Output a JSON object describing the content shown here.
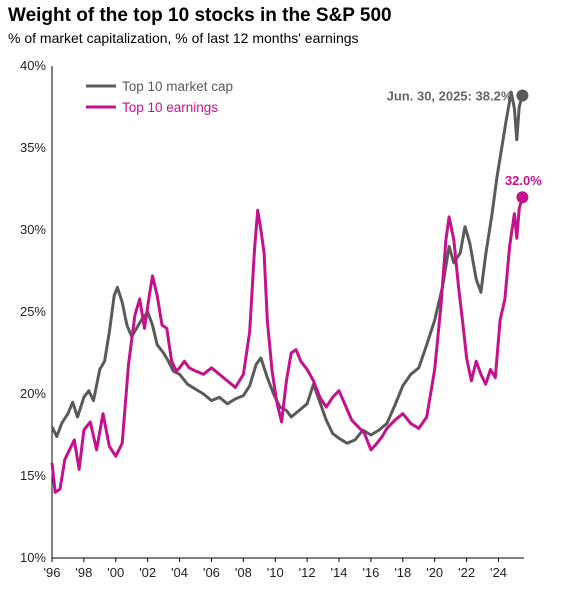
{
  "title": "Weight of the top 10 stocks in the S&P 500",
  "subtitle": "% of market capitalization, % of last 12 months' earnings",
  "colors": {
    "market_cap": "#5a5a5a",
    "earnings": "#c4128c"
  },
  "chart_data": {
    "type": "line",
    "title": "Weight of the top 10 stocks in the S&P 500",
    "subtitle": "% of market capitalization, % of last 12 months' earnings",
    "xlim": [
      1996,
      2025.6
    ],
    "ylim": [
      10,
      40
    ],
    "x_ticks": [
      1996,
      1998,
      2000,
      2002,
      2004,
      2006,
      2008,
      2010,
      2012,
      2014,
      2016,
      2018,
      2020,
      2022,
      2024
    ],
    "x_tick_labels": [
      "'96",
      "'98",
      "'00",
      "'02",
      "'04",
      "'06",
      "'08",
      "'10",
      "'12",
      "'14",
      "'16",
      "'18",
      "'20",
      "'22",
      "'24"
    ],
    "y_ticks": [
      10,
      15,
      20,
      25,
      30,
      35,
      40
    ],
    "y_tick_labels": [
      "10%",
      "15%",
      "20%",
      "25%",
      "30%",
      "35%",
      "40%"
    ],
    "grid": false,
    "legend": {
      "position": "top-left",
      "entries": [
        "Top 10 market cap",
        "Top 10 earnings"
      ]
    },
    "series": [
      {
        "name": "Top 10 market cap",
        "color": "#5a5a5a",
        "points": [
          [
            1996.0,
            18.0
          ],
          [
            1996.3,
            17.4
          ],
          [
            1996.6,
            18.2
          ],
          [
            1997.0,
            18.8
          ],
          [
            1997.3,
            19.5
          ],
          [
            1997.6,
            18.6
          ],
          [
            1998.0,
            19.8
          ],
          [
            1998.3,
            20.2
          ],
          [
            1998.6,
            19.6
          ],
          [
            1999.0,
            21.5
          ],
          [
            1999.3,
            22.0
          ],
          [
            1999.6,
            23.8
          ],
          [
            1999.9,
            26.0
          ],
          [
            2000.1,
            26.5
          ],
          [
            2000.4,
            25.6
          ],
          [
            2000.7,
            24.2
          ],
          [
            2001.0,
            23.5
          ],
          [
            2001.3,
            24.0
          ],
          [
            2001.6,
            24.5
          ],
          [
            2002.0,
            25.0
          ],
          [
            2002.3,
            24.2
          ],
          [
            2002.6,
            23.0
          ],
          [
            2003.0,
            22.5
          ],
          [
            2003.3,
            22.0
          ],
          [
            2003.6,
            21.4
          ],
          [
            2004.0,
            21.2
          ],
          [
            2004.5,
            20.6
          ],
          [
            2005.0,
            20.3
          ],
          [
            2005.5,
            20.0
          ],
          [
            2006.0,
            19.6
          ],
          [
            2006.5,
            19.8
          ],
          [
            2007.0,
            19.4
          ],
          [
            2007.5,
            19.7
          ],
          [
            2008.0,
            19.9
          ],
          [
            2008.4,
            20.5
          ],
          [
            2008.8,
            21.8
          ],
          [
            2009.1,
            22.2
          ],
          [
            2009.5,
            21.0
          ],
          [
            2009.9,
            20.0
          ],
          [
            2010.3,
            19.2
          ],
          [
            2010.7,
            19.0
          ],
          [
            2011.0,
            18.6
          ],
          [
            2011.5,
            19.0
          ],
          [
            2012.0,
            19.4
          ],
          [
            2012.4,
            20.6
          ],
          [
            2012.8,
            19.5
          ],
          [
            2013.2,
            18.4
          ],
          [
            2013.6,
            17.6
          ],
          [
            2014.0,
            17.3
          ],
          [
            2014.5,
            17.0
          ],
          [
            2015.0,
            17.2
          ],
          [
            2015.5,
            17.8
          ],
          [
            2016.0,
            17.5
          ],
          [
            2016.5,
            17.8
          ],
          [
            2017.0,
            18.2
          ],
          [
            2017.5,
            19.3
          ],
          [
            2018.0,
            20.5
          ],
          [
            2018.5,
            21.2
          ],
          [
            2019.0,
            21.6
          ],
          [
            2019.5,
            23.0
          ],
          [
            2020.0,
            24.5
          ],
          [
            2020.5,
            26.6
          ],
          [
            2020.9,
            29.0
          ],
          [
            2021.2,
            28.0
          ],
          [
            2021.6,
            28.6
          ],
          [
            2021.9,
            30.2
          ],
          [
            2022.2,
            29.2
          ],
          [
            2022.6,
            27.0
          ],
          [
            2022.9,
            26.2
          ],
          [
            2023.2,
            28.5
          ],
          [
            2023.6,
            31.0
          ],
          [
            2023.9,
            33.2
          ],
          [
            2024.2,
            35.0
          ],
          [
            2024.5,
            36.8
          ],
          [
            2024.8,
            38.4
          ],
          [
            2025.0,
            37.4
          ],
          [
            2025.15,
            35.5
          ],
          [
            2025.3,
            37.5
          ],
          [
            2025.5,
            38.2
          ]
        ]
      },
      {
        "name": "Top 10 earnings",
        "color": "#c4128c",
        "points": [
          [
            1996.0,
            15.8
          ],
          [
            1996.2,
            14.0
          ],
          [
            1996.5,
            14.2
          ],
          [
            1996.8,
            16.0
          ],
          [
            1997.1,
            16.6
          ],
          [
            1997.4,
            17.2
          ],
          [
            1997.7,
            15.4
          ],
          [
            1998.0,
            17.8
          ],
          [
            1998.4,
            18.3
          ],
          [
            1998.8,
            16.6
          ],
          [
            1999.2,
            18.8
          ],
          [
            1999.6,
            16.8
          ],
          [
            2000.0,
            16.2
          ],
          [
            2000.4,
            17.0
          ],
          [
            2000.8,
            21.8
          ],
          [
            2001.2,
            24.8
          ],
          [
            2001.5,
            25.8
          ],
          [
            2001.8,
            24.0
          ],
          [
            2002.1,
            26.0
          ],
          [
            2002.3,
            27.2
          ],
          [
            2002.6,
            26.0
          ],
          [
            2002.9,
            24.2
          ],
          [
            2003.2,
            24.0
          ],
          [
            2003.5,
            22.0
          ],
          [
            2003.8,
            21.4
          ],
          [
            2004.0,
            21.6
          ],
          [
            2004.3,
            22.0
          ],
          [
            2004.6,
            21.6
          ],
          [
            2005.0,
            21.4
          ],
          [
            2005.5,
            21.2
          ],
          [
            2006.0,
            21.6
          ],
          [
            2006.5,
            21.2
          ],
          [
            2007.0,
            20.8
          ],
          [
            2007.5,
            20.4
          ],
          [
            2008.0,
            21.2
          ],
          [
            2008.4,
            23.8
          ],
          [
            2008.7,
            28.8
          ],
          [
            2008.9,
            31.2
          ],
          [
            2009.1,
            30.0
          ],
          [
            2009.3,
            28.6
          ],
          [
            2009.5,
            24.5
          ],
          [
            2009.8,
            21.4
          ],
          [
            2010.1,
            19.5
          ],
          [
            2010.4,
            18.3
          ],
          [
            2010.7,
            20.8
          ],
          [
            2011.0,
            22.5
          ],
          [
            2011.3,
            22.7
          ],
          [
            2011.6,
            22.0
          ],
          [
            2012.0,
            21.5
          ],
          [
            2012.4,
            20.8
          ],
          [
            2012.8,
            19.8
          ],
          [
            2013.2,
            19.2
          ],
          [
            2013.6,
            19.8
          ],
          [
            2014.0,
            20.2
          ],
          [
            2014.4,
            19.3
          ],
          [
            2014.8,
            18.4
          ],
          [
            2015.2,
            18.0
          ],
          [
            2015.6,
            17.6
          ],
          [
            2016.0,
            16.6
          ],
          [
            2016.3,
            16.9
          ],
          [
            2016.7,
            17.4
          ],
          [
            2017.0,
            17.9
          ],
          [
            2017.5,
            18.4
          ],
          [
            2018.0,
            18.8
          ],
          [
            2018.5,
            18.2
          ],
          [
            2019.0,
            17.9
          ],
          [
            2019.5,
            18.6
          ],
          [
            2020.0,
            21.5
          ],
          [
            2020.4,
            25.5
          ],
          [
            2020.7,
            29.4
          ],
          [
            2020.9,
            30.8
          ],
          [
            2021.2,
            29.4
          ],
          [
            2021.5,
            26.5
          ],
          [
            2021.8,
            24.0
          ],
          [
            2022.0,
            22.2
          ],
          [
            2022.3,
            20.8
          ],
          [
            2022.6,
            22.0
          ],
          [
            2022.9,
            21.2
          ],
          [
            2023.2,
            20.6
          ],
          [
            2023.5,
            21.5
          ],
          [
            2023.8,
            21.0
          ],
          [
            2024.1,
            24.5
          ],
          [
            2024.4,
            25.8
          ],
          [
            2024.7,
            29.0
          ],
          [
            2025.0,
            31.0
          ],
          [
            2025.15,
            29.5
          ],
          [
            2025.3,
            31.3
          ],
          [
            2025.5,
            32.0
          ]
        ]
      }
    ],
    "annotations": [
      {
        "series": "Top 10 market cap",
        "x": 2025.5,
        "y": 38.2,
        "text": "Jun. 30, 2025: 38.2%"
      },
      {
        "series": "Top 10 earnings",
        "x": 2025.5,
        "y": 32.0,
        "text": "32.0%"
      }
    ]
  }
}
